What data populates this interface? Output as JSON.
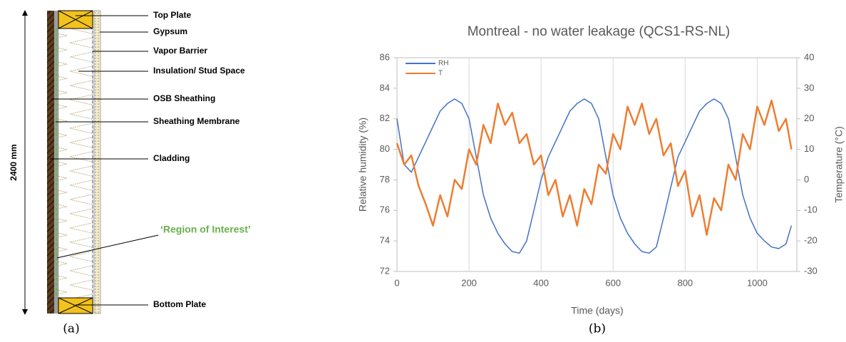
{
  "diagram": {
    "dimension": "2400 mm",
    "labels": [
      "Top Plate",
      "Gypsum",
      "Vapor Barrier",
      "Insulation/ Stud Space",
      "OSB Sheathing",
      "Sheathing Membrane",
      "Cladding",
      "‘Region of Interest’",
      "Bottom Plate"
    ]
  },
  "captions": [
    "(a)",
    "(b)"
  ],
  "chart_data": {
    "type": "line",
    "title": "Montreal - no water leakage (QCS1-RS-NL)",
    "x_label": "Time (days)",
    "y_label": "Relative humidity (%)",
    "y2_label": "Temperature (°C)",
    "x": [
      0,
      20,
      40,
      60,
      80,
      100,
      120,
      140,
      160,
      180,
      200,
      220,
      240,
      260,
      280,
      300,
      320,
      340,
      360,
      380,
      400,
      420,
      440,
      460,
      480,
      500,
      520,
      540,
      560,
      580,
      600,
      620,
      640,
      660,
      680,
      700,
      720,
      740,
      760,
      780,
      800,
      820,
      840,
      860,
      880,
      900,
      920,
      940,
      960,
      980,
      1000,
      1020,
      1040,
      1060,
      1080,
      1095
    ],
    "series": [
      {
        "name": "RH",
        "color": "#4472c4",
        "values": [
          82,
          79,
          78.5,
          79.5,
          80.5,
          81.5,
          82.5,
          83,
          83.3,
          83,
          82,
          79.5,
          77,
          75.5,
          74.5,
          73.8,
          73.3,
          73.2,
          74,
          76,
          78,
          79.5,
          80.5,
          81.5,
          82.5,
          83,
          83.3,
          83,
          82,
          79.5,
          77,
          75.5,
          74.5,
          73.8,
          73.3,
          73.2,
          73.6,
          75.5,
          77.5,
          79.5,
          80.5,
          81.5,
          82.5,
          83,
          83.3,
          83,
          82,
          79.5,
          77,
          75.5,
          74.5,
          74,
          73.6,
          73.5,
          73.8,
          75
        ]
      },
      {
        "name": "T",
        "color": "#ed7d31",
        "axis": "y2",
        "values": [
          12,
          5,
          8,
          -2,
          -8,
          -15,
          -5,
          -12,
          0,
          -3,
          10,
          5,
          18,
          12,
          25,
          18,
          22,
          12,
          15,
          5,
          8,
          -5,
          0,
          -12,
          -5,
          -15,
          -3,
          -8,
          5,
          2,
          15,
          10,
          24,
          18,
          25,
          15,
          20,
          8,
          12,
          -2,
          3,
          -12,
          -5,
          -18,
          -6,
          -10,
          5,
          0,
          15,
          10,
          24,
          18,
          26,
          16,
          20,
          10
        ]
      }
    ],
    "xlim": [
      0,
      1110
    ],
    "xticks": [
      0,
      200,
      400,
      600,
      800,
      1000
    ],
    "ylim": [
      72,
      86
    ],
    "yticks": [
      72,
      74,
      76,
      78,
      80,
      82,
      84,
      86
    ],
    "y2lim": [
      -30,
      40
    ],
    "y2ticks": [
      -30,
      -20,
      -10,
      0,
      10,
      20,
      30,
      40
    ],
    "grid": true,
    "legend": "top-left"
  }
}
